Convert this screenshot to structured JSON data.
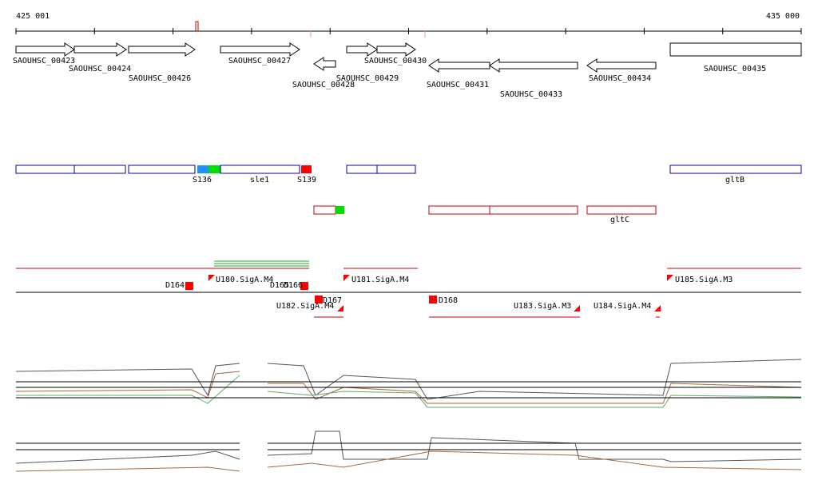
{
  "ruler": {
    "start": "425 001",
    "end": "435 000"
  },
  "genes": [
    "SAOUHSC_00423",
    "SAOUHSC_00424",
    "SAOUHSC_00426",
    "SAOUHSC_00427",
    "SAOUHSC_00428",
    "SAOUHSC_00429",
    "SAOUHSC_00430",
    "SAOUHSC_00431",
    "SAOUHSC_00433",
    "SAOUHSC_00434",
    "SAOUHSC_00435"
  ],
  "regions": [
    "S136",
    "sle1",
    "S139",
    "gltB",
    "gltC"
  ],
  "transcripts": [
    "D164",
    "U180.SigA.M4",
    "D165",
    "D166",
    "D167",
    "U182.SigA.M4",
    "U181.SigA.M4",
    "D168",
    "U183.SigA.M3",
    "U184.SigA.M4",
    "U185.SigA.M3"
  ]
}
